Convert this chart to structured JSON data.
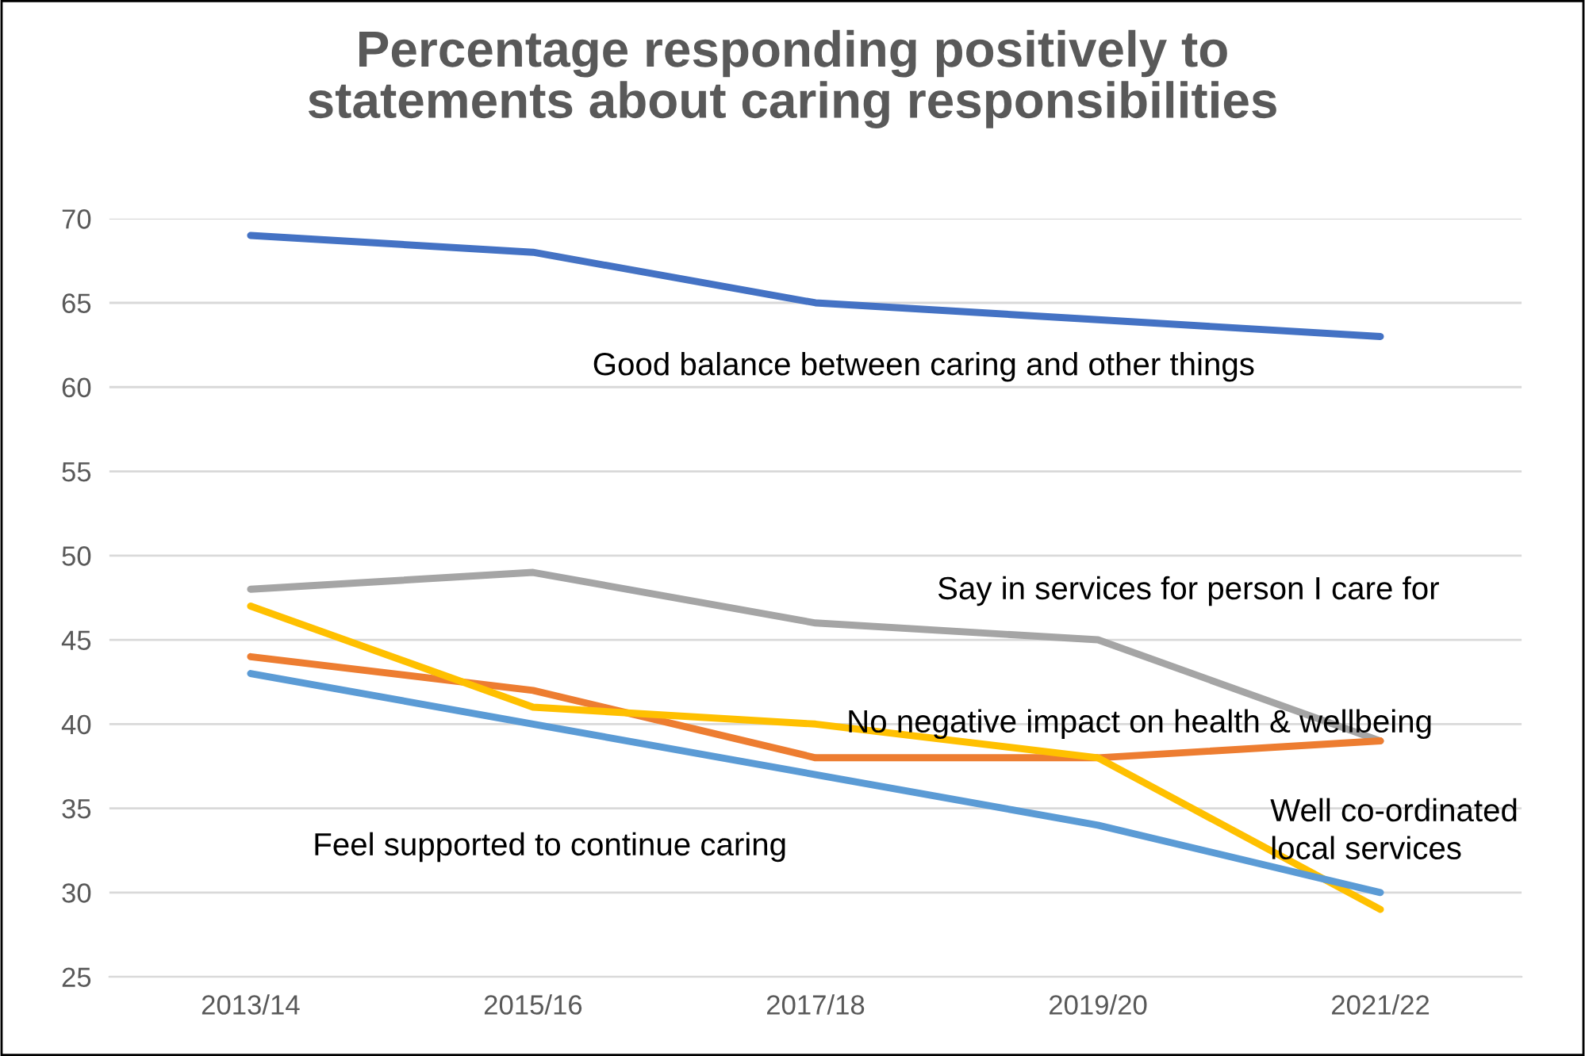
{
  "chart_data": {
    "type": "line",
    "title": "Percentage responding positively to\nstatements about caring responsibilities",
    "categories": [
      "2013/14",
      "2015/16",
      "2017/18",
      "2019/20",
      "2021/22"
    ],
    "series": [
      {
        "name": "Good balance between caring and other things",
        "color": "#4472c4",
        "values": [
          69,
          68,
          65,
          64,
          63
        ]
      },
      {
        "name": "Say in services for person I care for",
        "color": "#a5a5a5",
        "values": [
          48,
          49,
          46,
          45,
          39
        ]
      },
      {
        "name": "No negative impact on health & wellbeing",
        "color": "#ed7d31",
        "values": [
          44,
          42,
          38,
          38,
          39
        ]
      },
      {
        "name": "Well co-ordinated\nlocal services",
        "color": "#ffc000",
        "values": [
          47,
          41,
          40,
          38,
          29
        ]
      },
      {
        "name": "Feel supported to continue caring",
        "color": "#5b9bd5",
        "values": [
          43,
          40,
          37,
          34,
          30
        ]
      }
    ],
    "ylim": [
      25,
      70
    ],
    "yticks": [
      25,
      30,
      35,
      40,
      45,
      50,
      55,
      60,
      65,
      70
    ],
    "grid": "y",
    "legend": false,
    "marker": "none",
    "line_style": "solid"
  }
}
